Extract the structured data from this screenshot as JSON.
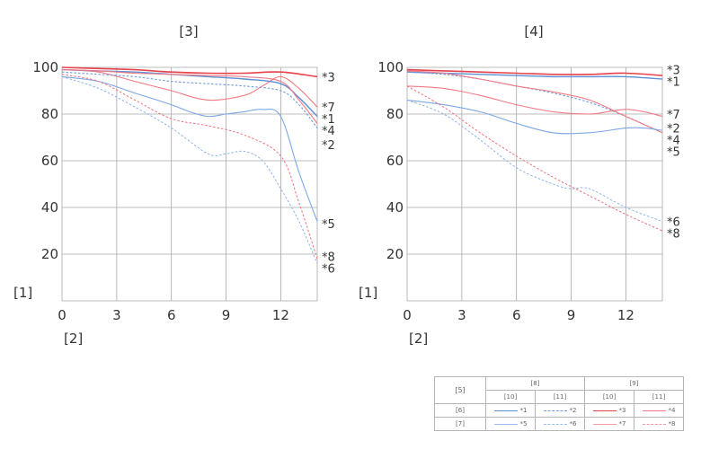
{
  "chart_data": [
    {
      "type": "line",
      "title": "[3]",
      "ylabel": "[1]",
      "xlabel": "[2]",
      "xlim": [
        0,
        14
      ],
      "ylim": [
        0,
        100
      ],
      "xticks": [
        0,
        3,
        6,
        9,
        12
      ],
      "yticks": [
        20,
        40,
        60,
        80,
        100
      ],
      "grid": true,
      "series": [
        {
          "name": "*3",
          "color": "#e8424b",
          "dashed": false,
          "width": 1.6,
          "x": [
            0,
            2,
            4,
            6,
            8,
            10,
            12,
            14
          ],
          "y": [
            100,
            99.5,
            99,
            98,
            97.5,
            97.5,
            98,
            96
          ]
        },
        {
          "name": "*7",
          "color": "#f27a82",
          "dashed": false,
          "width": 1.1,
          "x": [
            0,
            2,
            4,
            6,
            8,
            10,
            11,
            12,
            13,
            14
          ],
          "y": [
            99,
            98,
            94,
            90,
            86,
            88,
            92,
            96,
            91,
            83
          ]
        },
        {
          "name": "*1",
          "color": "#5b8fd6",
          "dashed": false,
          "width": 1.4,
          "x": [
            0,
            2,
            4,
            6,
            8,
            10,
            12,
            13,
            14
          ],
          "y": [
            99,
            98.5,
            98,
            97,
            96,
            95,
            93,
            87,
            79
          ]
        },
        {
          "name": "*4",
          "color": "#f27a82",
          "dashed": false,
          "width": 1.1,
          "x": [
            0,
            2,
            4,
            6,
            8,
            10,
            12,
            13,
            14
          ],
          "y": [
            99,
            98.5,
            97.5,
            97,
            96.5,
            96,
            94,
            86,
            76
          ]
        },
        {
          "name": "*2",
          "color": "#6e9be0",
          "dashed": true,
          "width": 1.1,
          "x": [
            0,
            2,
            4,
            6,
            8,
            10,
            12,
            13,
            14
          ],
          "y": [
            98,
            97,
            96,
            94,
            93,
            92,
            90,
            84,
            74
          ]
        },
        {
          "name": "*5",
          "color": "#7ca7e6",
          "dashed": false,
          "width": 1.1,
          "x": [
            0,
            2,
            4,
            6,
            7,
            8,
            9,
            10,
            11,
            12,
            13,
            14
          ],
          "y": [
            96,
            94,
            89,
            84,
            81,
            79,
            80,
            81,
            82,
            79,
            55,
            34
          ]
        },
        {
          "name": "*8",
          "color": "#f0707a",
          "dashed": true,
          "width": 1.0,
          "x": [
            0,
            2,
            4,
            6,
            8,
            10,
            12,
            13,
            14
          ],
          "y": [
            97,
            94,
            86,
            78,
            75,
            71,
            62,
            42,
            18
          ]
        },
        {
          "name": "*6",
          "color": "#8fb2ec",
          "dashed": true,
          "width": 1.0,
          "x": [
            0,
            2,
            4,
            6,
            8,
            9,
            10,
            11,
            12,
            13,
            14
          ],
          "y": [
            96,
            91,
            83,
            74,
            63,
            63,
            64,
            60,
            48,
            34,
            16
          ]
        }
      ],
      "end_labels": [
        {
          "text": "*3",
          "y": 96
        },
        {
          "text": "*7",
          "y": 83
        },
        {
          "text": "*1",
          "y": 78
        },
        {
          "text": "*4",
          "y": 73
        },
        {
          "text": "*2",
          "y": 67
        },
        {
          "text": "*5",
          "y": 33
        },
        {
          "text": "*8",
          "y": 19
        },
        {
          "text": "*6",
          "y": 14
        }
      ]
    },
    {
      "type": "line",
      "title": "[4]",
      "ylabel": "[1]",
      "xlabel": "[2]",
      "xlim": [
        0,
        14
      ],
      "ylim": [
        0,
        100
      ],
      "xticks": [
        0,
        3,
        6,
        9,
        12
      ],
      "yticks": [
        20,
        40,
        60,
        80,
        100
      ],
      "grid": true,
      "series": [
        {
          "name": "*3",
          "color": "#e8424b",
          "dashed": false,
          "width": 1.6,
          "x": [
            0,
            2,
            4,
            6,
            8,
            10,
            12,
            14
          ],
          "y": [
            99,
            98.5,
            98,
            97.5,
            97,
            97,
            97.5,
            96.5
          ]
        },
        {
          "name": "*1",
          "color": "#5b8fd6",
          "dashed": false,
          "width": 1.4,
          "x": [
            0,
            2,
            4,
            6,
            8,
            10,
            12,
            14
          ],
          "y": [
            98,
            97.5,
            97,
            96.5,
            96,
            96,
            96,
            95
          ]
        },
        {
          "name": "*7",
          "color": "#f27a82",
          "dashed": false,
          "width": 1.1,
          "x": [
            0,
            2,
            4,
            6,
            8,
            10,
            11,
            12,
            13,
            14
          ],
          "y": [
            92,
            91,
            88,
            84,
            81,
            80,
            81,
            82,
            81,
            79
          ]
        },
        {
          "name": "*2",
          "color": "#6e9be0",
          "dashed": true,
          "width": 1.1,
          "x": [
            0,
            2,
            4,
            6,
            8,
            10,
            12,
            14
          ],
          "y": [
            98,
            97,
            95,
            92,
            89,
            85,
            79,
            72
          ]
        },
        {
          "name": "*4",
          "color": "#f27a82",
          "dashed": false,
          "width": 1.1,
          "x": [
            0,
            2,
            4,
            6,
            8,
            10,
            12,
            14
          ],
          "y": [
            98.5,
            97.5,
            95,
            92,
            89.5,
            86,
            79,
            72
          ]
        },
        {
          "name": "*5",
          "color": "#7ca7e6",
          "dashed": false,
          "width": 1.1,
          "x": [
            0,
            2,
            4,
            6,
            8,
            10,
            12,
            13,
            14
          ],
          "y": [
            86,
            84,
            81,
            76,
            72,
            72,
            74,
            74,
            73
          ]
        },
        {
          "name": "*6",
          "color": "#8fb2ec",
          "dashed": true,
          "width": 1.0,
          "x": [
            0,
            2,
            4,
            6,
            8,
            9,
            10,
            12,
            14
          ],
          "y": [
            86,
            80,
            69,
            57,
            50,
            48,
            48,
            40,
            34
          ]
        },
        {
          "name": "*8",
          "color": "#f0707a",
          "dashed": true,
          "width": 1.0,
          "x": [
            0,
            2,
            4,
            6,
            8,
            10,
            12,
            14
          ],
          "y": [
            92,
            83,
            72,
            62,
            53,
            45,
            37,
            30
          ]
        }
      ],
      "end_labels": [
        {
          "text": "*3",
          "y": 99
        },
        {
          "text": "*1",
          "y": 94
        },
        {
          "text": "*7",
          "y": 80
        },
        {
          "text": "*2",
          "y": 74
        },
        {
          "text": "*4",
          "y": 69
        },
        {
          "text": "*5",
          "y": 64
        },
        {
          "text": "*6",
          "y": 34
        },
        {
          "text": "*8",
          "y": 29
        }
      ]
    }
  ],
  "legend": {
    "corner": "[5]",
    "group_a": "[8]",
    "group_b": "[9]",
    "sub_a1": "[10]",
    "sub_a2": "[11]",
    "sub_b1": "[10]",
    "sub_b2": "[11]",
    "row1": "[6]",
    "row2": "[7]",
    "cells": [
      {
        "label": "*1",
        "color": "#5b8fd6",
        "dashed": false
      },
      {
        "label": "*2",
        "color": "#6e9be0",
        "dashed": true
      },
      {
        "label": "*3",
        "color": "#e8424b",
        "dashed": false
      },
      {
        "label": "*4",
        "color": "#f27a82",
        "dashed": false
      },
      {
        "label": "*5",
        "color": "#9bbcee",
        "dashed": false
      },
      {
        "label": "*6",
        "color": "#9bbcee",
        "dashed": true
      },
      {
        "label": "*7",
        "color": "#f49aa0",
        "dashed": false
      },
      {
        "label": "*8",
        "color": "#f49aa0",
        "dashed": true
      }
    ]
  }
}
